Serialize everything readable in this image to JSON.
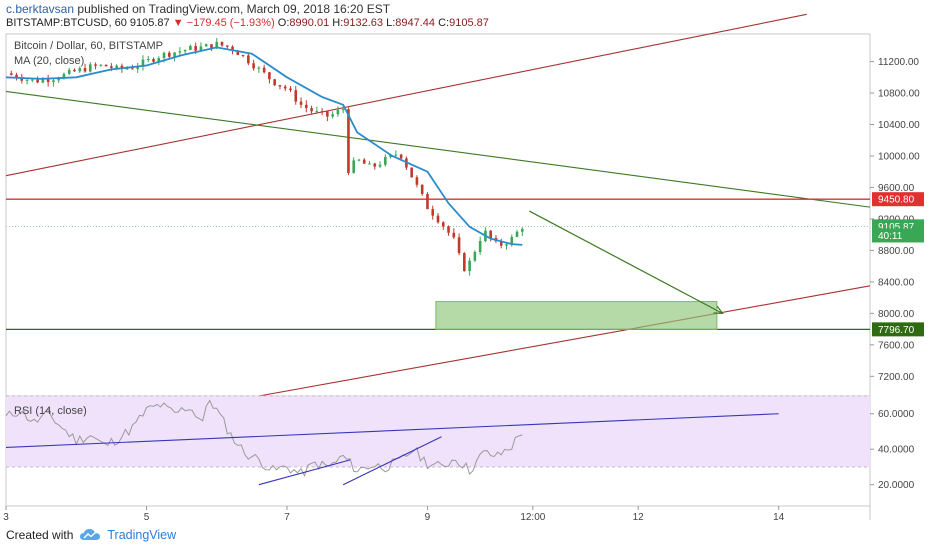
{
  "header": {
    "author": "c.berktavsan",
    "published_text": "published on TradingView.com, March 09, 2018 16:20 EST",
    "symbol": "BITSTAMP:BTCUSD, 60",
    "last": "9105.87",
    "change": "▼ −179.45 (−1.93%)",
    "o_label": "O:",
    "o": "8990.01",
    "h_label": "H:",
    "h": "9132.63",
    "l_label": "L:",
    "l": "8947.44",
    "c_label": "C:",
    "c": "9105.87"
  },
  "legend": {
    "symbol_line": "Bitcoin / Dollar, 60, BITSTAMP",
    "ma_line": "MA (20, close)",
    "rsi_line": "RSI (14, close)"
  },
  "footer": {
    "created_with": "Created with",
    "brand": "TradingView"
  },
  "colors": {
    "candle_up": "#3aa757",
    "candle_down": "#c0392b",
    "ma": "#2b8ccc",
    "red_trend": "#a83232",
    "green_trend": "#3c7a22",
    "resistance": "#e03030",
    "support": "#2e6b10",
    "target_box": "#8fc57a",
    "rsi_band": "#f0e2fb",
    "rsi_line": "#9a9a9a",
    "rsi_trend": "#3636b8"
  },
  "icons": {
    "footer_logo": "tradingview-cloud-icon",
    "arrow": "down-right-arrow"
  },
  "chart_data": [
    {
      "type": "candlestick",
      "title": "Bitcoin / Dollar, 60, BITSTAMP",
      "x_ticks": [
        "3",
        "5",
        "7",
        "9",
        "12:00",
        "12",
        "14"
      ],
      "x_range_days": [
        3,
        15.3
      ],
      "y_ticks": [
        7200,
        7600,
        8000,
        8400,
        8800,
        9200,
        9600,
        10000,
        10400,
        10800,
        11200
      ],
      "y_tick_labels": [
        "7200.00",
        "7600.00",
        "8000.00",
        "8400.00",
        "8800.00",
        "9200.00",
        "9600.00",
        "10000.00",
        "10400.00",
        "10800.00",
        "11200.00"
      ],
      "ylim": [
        6950,
        11550
      ],
      "price_series_close": [
        [
          3.0,
          11050
        ],
        [
          3.2,
          11000
        ],
        [
          3.4,
          10950
        ],
        [
          3.6,
          10980
        ],
        [
          3.8,
          11020
        ],
        [
          4.0,
          11080
        ],
        [
          4.2,
          11130
        ],
        [
          4.4,
          11150
        ],
        [
          4.6,
          11100
        ],
        [
          4.8,
          11130
        ],
        [
          5.0,
          11200
        ],
        [
          5.2,
          11280
        ],
        [
          5.4,
          11320
        ],
        [
          5.6,
          11360
        ],
        [
          5.8,
          11380
        ],
        [
          6.0,
          11420
        ],
        [
          6.2,
          11380
        ],
        [
          6.4,
          11250
        ],
        [
          6.6,
          11100
        ],
        [
          6.8,
          10950
        ],
        [
          7.0,
          10850
        ],
        [
          7.2,
          10650
        ],
        [
          7.4,
          10550
        ],
        [
          7.6,
          10500
        ],
        [
          7.8,
          10600
        ],
        [
          7.85,
          9800
        ],
        [
          8.0,
          9950
        ],
        [
          8.2,
          9850
        ],
        [
          8.4,
          9950
        ],
        [
          8.6,
          10050
        ],
        [
          8.8,
          9700
        ],
        [
          9.0,
          9350
        ],
        [
          9.2,
          9150
        ],
        [
          9.4,
          8900
        ],
        [
          9.5,
          8550
        ],
        [
          9.6,
          8650
        ],
        [
          9.8,
          9050
        ],
        [
          10.0,
          8850
        ],
        [
          10.2,
          8950
        ],
        [
          10.35,
          9105
        ]
      ],
      "ma": {
        "name": "MA (20, close)",
        "points": [
          [
            3.0,
            11000
          ],
          [
            3.5,
            10980
          ],
          [
            4.0,
            11000
          ],
          [
            4.5,
            11100
          ],
          [
            5.0,
            11150
          ],
          [
            5.5,
            11280
          ],
          [
            6.0,
            11380
          ],
          [
            6.5,
            11300
          ],
          [
            7.0,
            11000
          ],
          [
            7.5,
            10750
          ],
          [
            7.8,
            10650
          ],
          [
            8.0,
            10300
          ],
          [
            8.5,
            10000
          ],
          [
            9.0,
            9800
          ],
          [
            9.3,
            9400
          ],
          [
            9.6,
            9100
          ],
          [
            9.9,
            8950
          ],
          [
            10.2,
            8880
          ],
          [
            10.35,
            8870
          ]
        ]
      },
      "price_tags": [
        {
          "value": 9450.8,
          "label": "9450.80"
        },
        {
          "value": 9105.87,
          "label": "9105.87"
        },
        {
          "value": 8990,
          "label": "40:11"
        },
        {
          "value": 7796.7,
          "label": "7796.70"
        }
      ],
      "lines": [
        {
          "name": "red-channel-top",
          "from": [
            3.0,
            9750
          ],
          "to": [
            14.4,
            11800
          ]
        },
        {
          "name": "red-channel-bottom",
          "from": [
            6.6,
            6950
          ],
          "to": [
            15.3,
            8350
          ]
        },
        {
          "name": "green-downtrend",
          "from": [
            3.0,
            10820
          ],
          "to": [
            15.3,
            9350
          ]
        },
        {
          "name": "resistance",
          "value": 9450.8
        },
        {
          "name": "support",
          "value": 7796.7
        }
      ],
      "target_box": {
        "x": [
          9.12,
          13.12
        ],
        "y": [
          7796.7,
          8150
        ]
      },
      "arrow": {
        "from": [
          10.45,
          9300
        ],
        "to": [
          13.2,
          8000
        ]
      }
    },
    {
      "type": "line",
      "title": "RSI (14, close)",
      "y_ticks": [
        20,
        40,
        60
      ],
      "y_tick_labels": [
        "20.0000",
        "40.0000",
        "60.0000"
      ],
      "ylim": [
        8,
        70
      ],
      "band": [
        30,
        70
      ],
      "series": [
        {
          "name": "RSI (14, close)",
          "points": [
            [
              3.0,
              58
            ],
            [
              3.2,
              62
            ],
            [
              3.4,
              55
            ],
            [
              3.6,
              60
            ],
            [
              3.8,
              52
            ],
            [
              4.0,
              45
            ],
            [
              4.2,
              48
            ],
            [
              4.4,
              42
            ],
            [
              4.6,
              46
            ],
            [
              4.8,
              52
            ],
            [
              5.0,
              62
            ],
            [
              5.2,
              65
            ],
            [
              5.4,
              60
            ],
            [
              5.6,
              64
            ],
            [
              5.8,
              56
            ],
            [
              5.9,
              68
            ],
            [
              6.0,
              62
            ],
            [
              6.2,
              48
            ],
            [
              6.4,
              38
            ],
            [
              6.6,
              34
            ],
            [
              6.8,
              28
            ],
            [
              7.0,
              30
            ],
            [
              7.2,
              26
            ],
            [
              7.4,
              32
            ],
            [
              7.6,
              30
            ],
            [
              7.8,
              36
            ],
            [
              8.0,
              28
            ],
            [
              8.2,
              31
            ],
            [
              8.4,
              30
            ],
            [
              8.6,
              33
            ],
            [
              8.8,
              40
            ],
            [
              9.0,
              32
            ],
            [
              9.2,
              30
            ],
            [
              9.4,
              35
            ],
            [
              9.6,
              28
            ],
            [
              9.8,
              38
            ],
            [
              10.0,
              36
            ],
            [
              10.2,
              42
            ],
            [
              10.35,
              50
            ]
          ]
        }
      ],
      "lines": [
        {
          "name": "rsi-long-trend",
          "from": [
            3.0,
            41
          ],
          "to": [
            14.0,
            60
          ]
        },
        {
          "name": "rsi-trend-1",
          "from": [
            6.6,
            20
          ],
          "to": [
            7.9,
            34
          ]
        },
        {
          "name": "rsi-trend-2",
          "from": [
            7.8,
            20
          ],
          "to": [
            9.2,
            47
          ]
        }
      ]
    }
  ]
}
